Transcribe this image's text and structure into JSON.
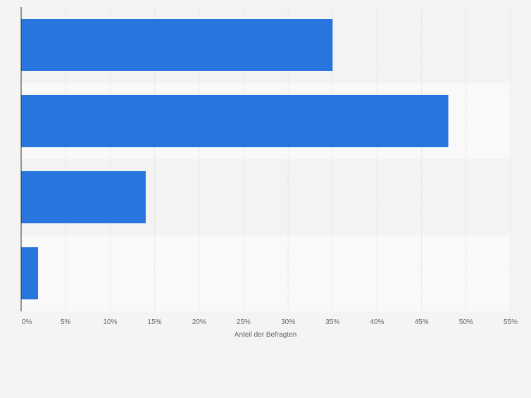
{
  "chart_data": {
    "type": "bar",
    "orientation": "horizontal",
    "categories": [
      "",
      "",
      "",
      ""
    ],
    "values": [
      35,
      48,
      14,
      1.9
    ],
    "xlabel": "Anteil der Befragten",
    "ylabel": "",
    "xlim": [
      0,
      55
    ],
    "ticks": [
      "0%",
      "5%",
      "10%",
      "15%",
      "20%",
      "25%",
      "30%",
      "35%",
      "40%",
      "45%",
      "50%",
      "55%"
    ],
    "grid": true,
    "colors": {
      "bar": "#2775dd",
      "band_dark": "#f3f3f3",
      "band_light": "#f9f9f9",
      "grid": "#d6d6d6",
      "axis": "#333333",
      "text": "#666666"
    }
  }
}
